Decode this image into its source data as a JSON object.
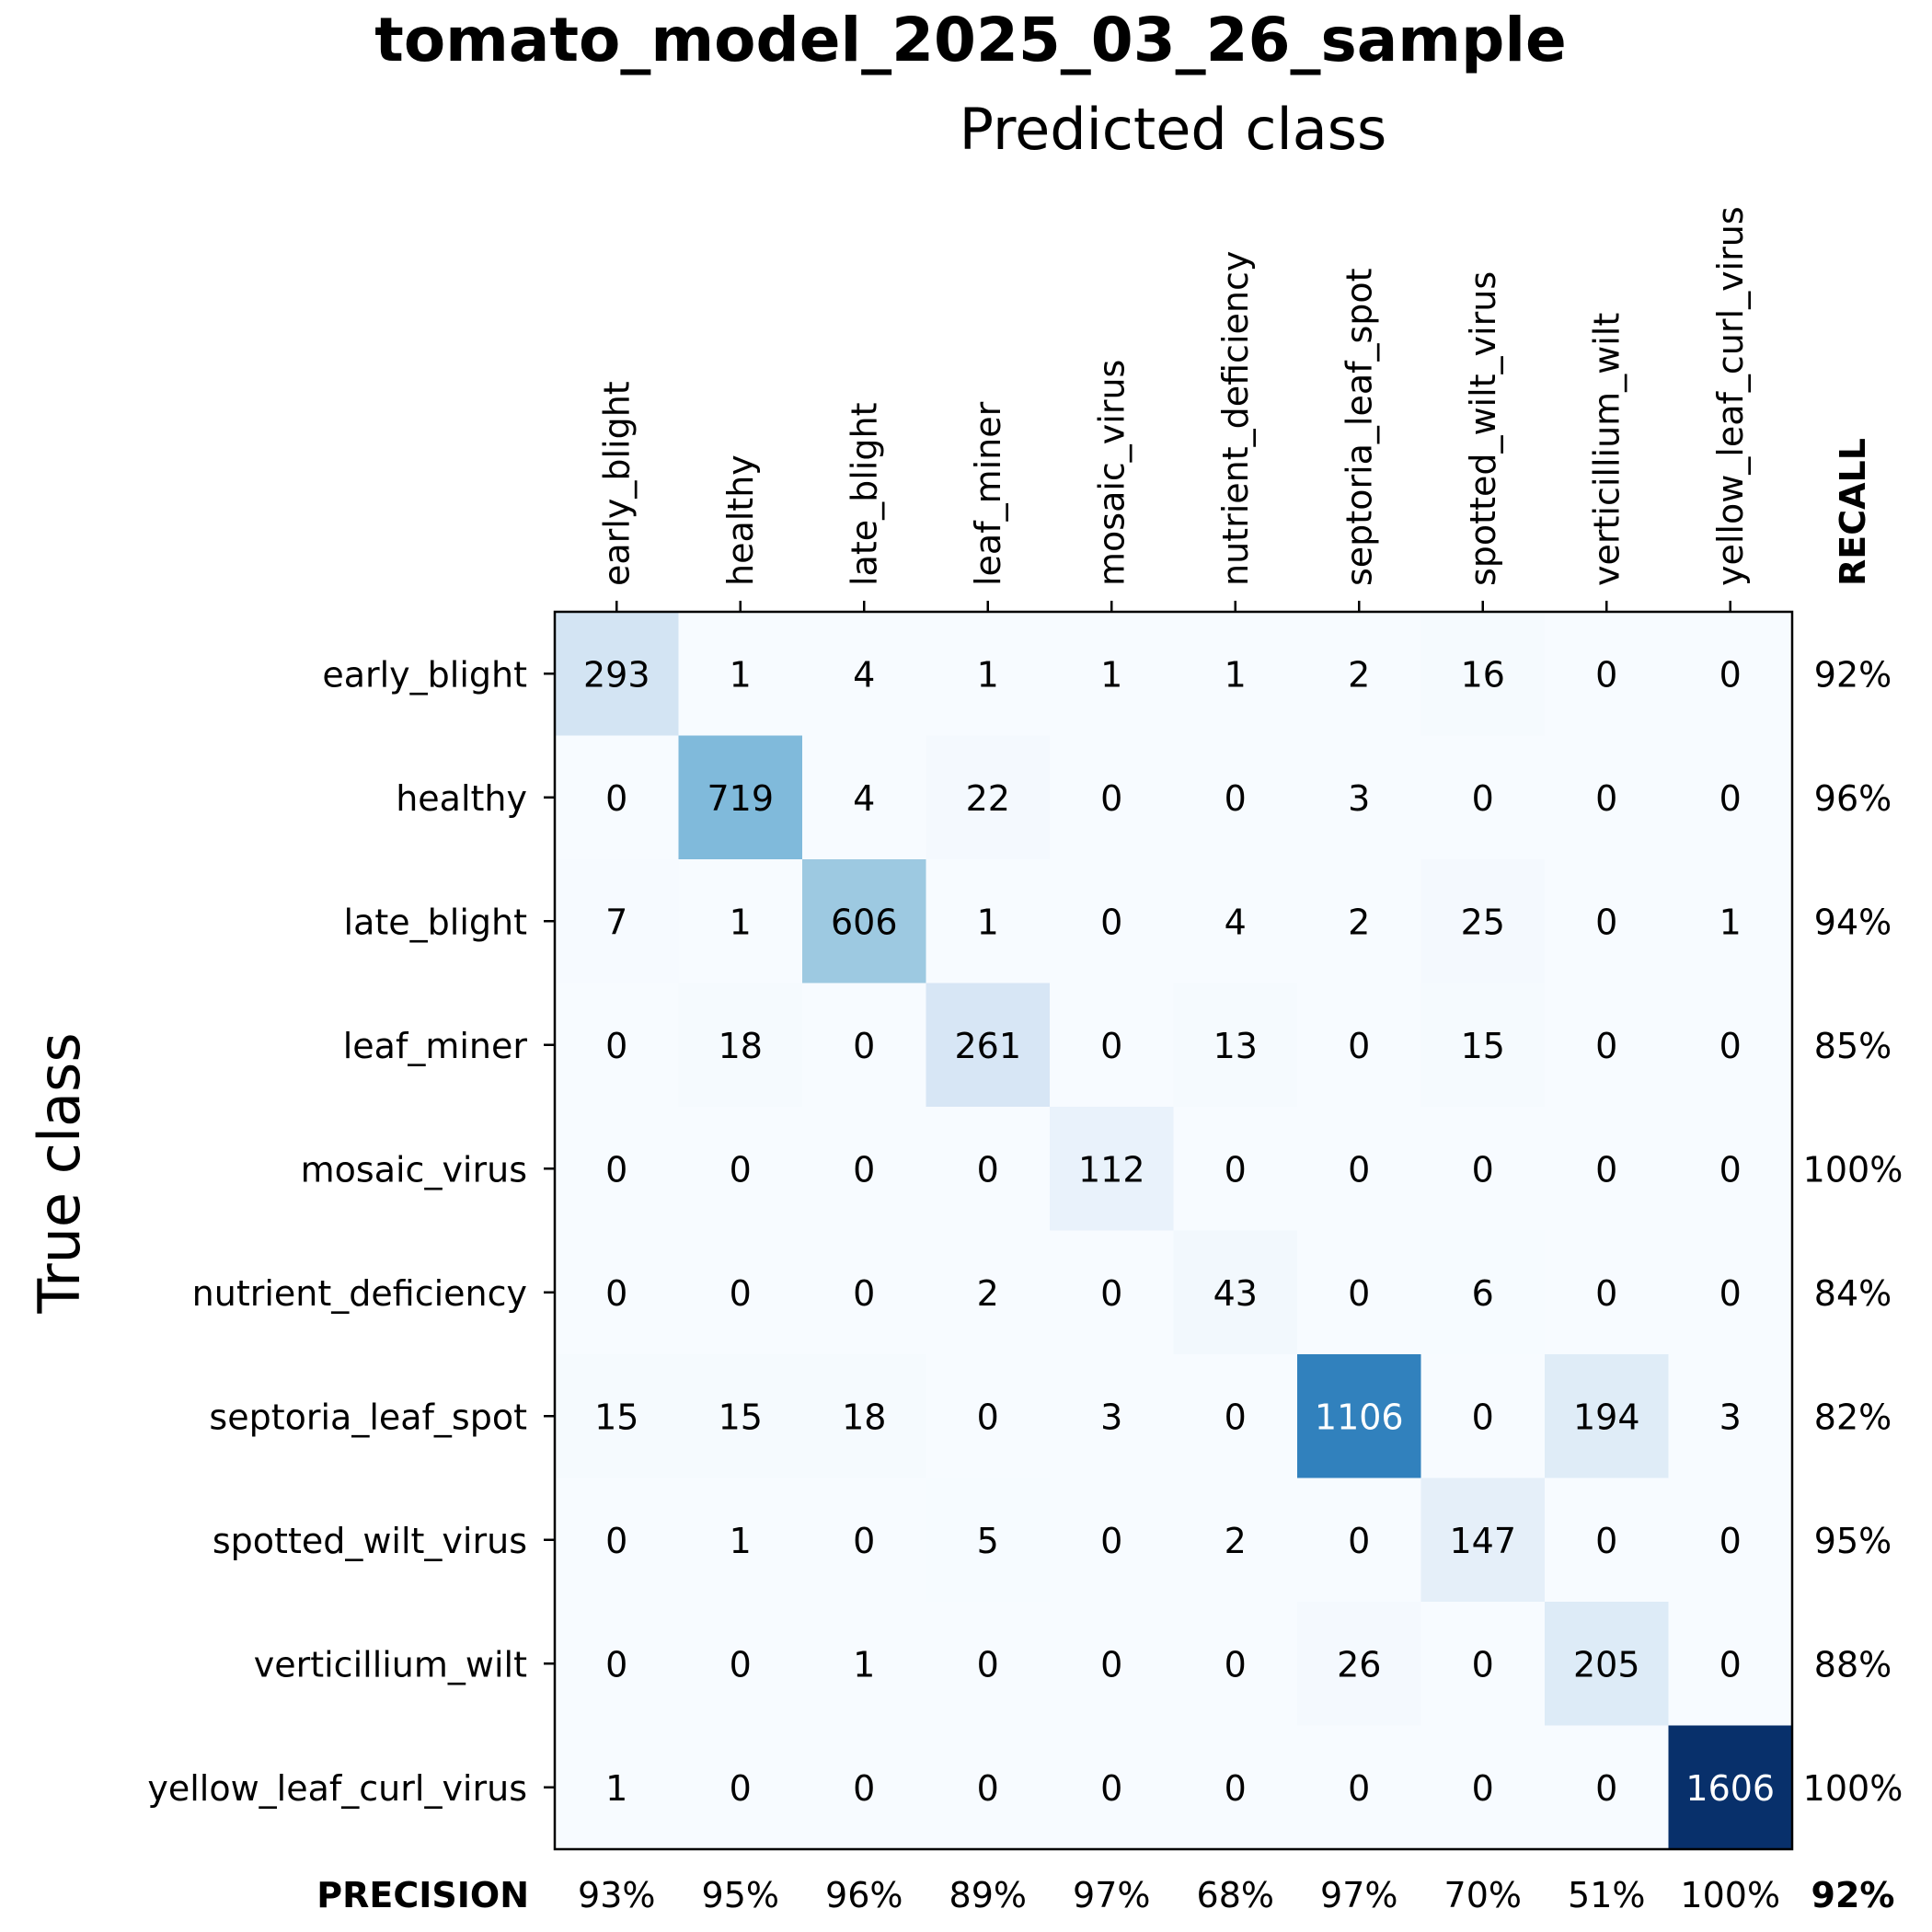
{
  "chart_data": {
    "type": "heatmap",
    "title": "tomato_model_2025_03_26_sample",
    "xlabel": "Predicted class",
    "ylabel": "True class",
    "categories": [
      "early_blight",
      "healthy",
      "late_blight",
      "leaf_miner",
      "mosaic_virus",
      "nutrient_deficiency",
      "septoria_leaf_spot",
      "spotted_wilt_virus",
      "verticillium_wilt",
      "yellow_leaf_curl_virus"
    ],
    "matrix": [
      [
        293,
        1,
        4,
        1,
        1,
        1,
        2,
        16,
        0,
        0
      ],
      [
        0,
        719,
        4,
        22,
        0,
        0,
        3,
        0,
        0,
        0
      ],
      [
        7,
        1,
        606,
        1,
        0,
        4,
        2,
        25,
        0,
        1
      ],
      [
        0,
        18,
        0,
        261,
        0,
        13,
        0,
        15,
        0,
        0
      ],
      [
        0,
        0,
        0,
        0,
        112,
        0,
        0,
        0,
        0,
        0
      ],
      [
        0,
        0,
        0,
        2,
        0,
        43,
        0,
        6,
        0,
        0
      ],
      [
        15,
        15,
        18,
        0,
        3,
        0,
        1106,
        0,
        194,
        3
      ],
      [
        0,
        1,
        0,
        5,
        0,
        2,
        0,
        147,
        0,
        0
      ],
      [
        0,
        0,
        1,
        0,
        0,
        0,
        26,
        0,
        205,
        0
      ],
      [
        1,
        0,
        0,
        0,
        0,
        0,
        0,
        0,
        0,
        1606
      ]
    ],
    "recall_label": "RECALL",
    "recall": [
      "92%",
      "96%",
      "94%",
      "85%",
      "100%",
      "84%",
      "82%",
      "95%",
      "88%",
      "100%"
    ],
    "precision_label": "PRECISION",
    "precision": [
      "93%",
      "95%",
      "96%",
      "89%",
      "97%",
      "68%",
      "97%",
      "70%",
      "51%",
      "100%"
    ],
    "overall": "92%",
    "colormap": "Blues",
    "color_range": [
      0,
      1606
    ]
  }
}
